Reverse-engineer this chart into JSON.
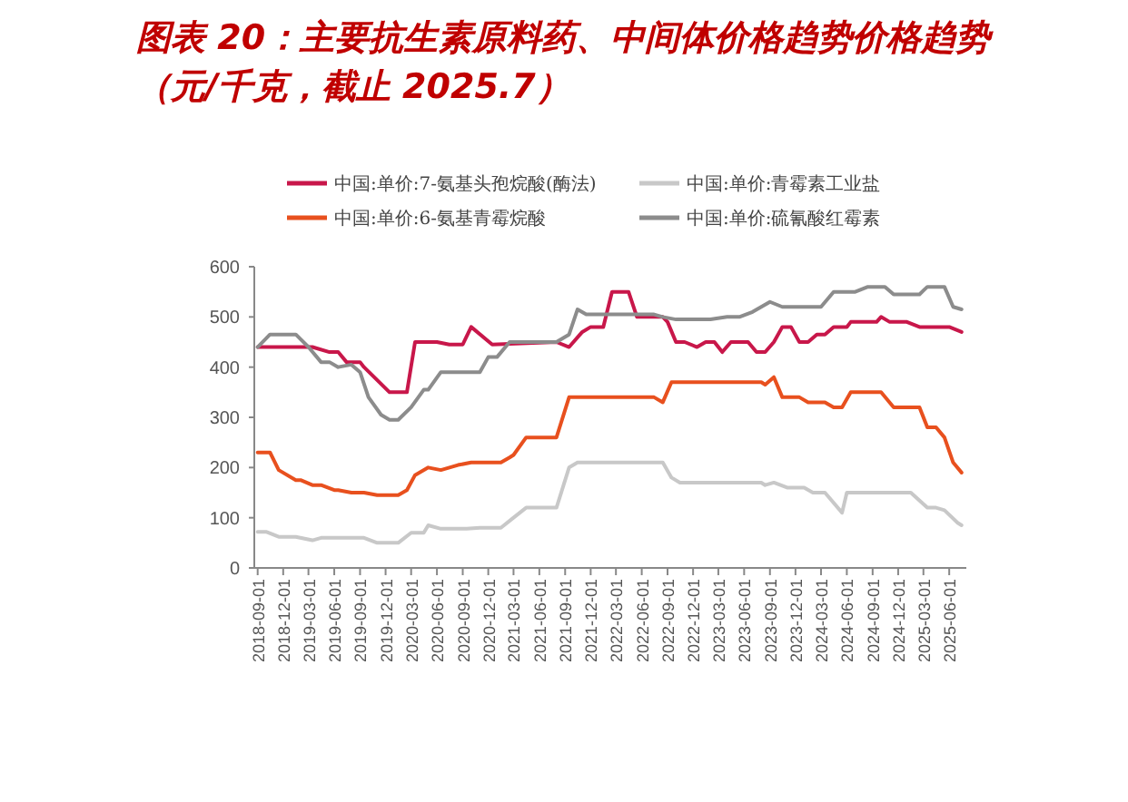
{
  "chart_data": {
    "type": "line",
    "title": "图表 20：主要抗生素原料药、中间体价格趋势价格趋势（元/千克，截止 2025.7）",
    "legend": "top",
    "grid": false,
    "xlim": [
      "2018-08-20",
      "2025-08-01"
    ],
    "ylim": [
      0,
      600
    ],
    "yticks": [
      0,
      100,
      200,
      300,
      400,
      500,
      600
    ],
    "xticks": [
      "2018-09-01",
      "2018-12-01",
      "2019-03-01",
      "2019-06-01",
      "2019-09-01",
      "2019-12-01",
      "2020-03-01",
      "2020-06-01",
      "2020-09-01",
      "2020-12-01",
      "2021-03-01",
      "2021-06-01",
      "2021-09-01",
      "2021-12-01",
      "2022-03-01",
      "2022-06-01",
      "2022-09-01",
      "2022-12-01",
      "2023-03-01",
      "2023-06-01",
      "2023-09-01",
      "2023-12-01",
      "2024-03-01",
      "2024-06-01",
      "2024-09-01",
      "2024-12-01",
      "2025-03-01",
      "2025-06-01"
    ],
    "series": [
      {
        "name": "中国:单价:7-氨基头孢烷酸(酶法)",
        "color": "#c8174a",
        "x": [
          "2018-09-01",
          "2019-03-15",
          "2019-05-15",
          "2019-06-15",
          "2019-07-15",
          "2019-09-01",
          "2019-09-15",
          "2019-12-15",
          "2020-02-15",
          "2020-03-15",
          "2020-06-01",
          "2020-07-15",
          "2020-09-01",
          "2020-10-01",
          "2020-12-15",
          "2021-08-01",
          "2021-09-15",
          "2021-11-01",
          "2021-12-01",
          "2022-01-15",
          "2022-02-15",
          "2022-04-15",
          "2022-05-15",
          "2022-08-15",
          "2022-09-01",
          "2022-10-01",
          "2022-11-01",
          "2022-12-15",
          "2023-01-15",
          "2023-02-15",
          "2023-03-15",
          "2023-04-15",
          "2023-06-15",
          "2023-07-15",
          "2023-08-15",
          "2023-09-15",
          "2023-10-15",
          "2023-11-15",
          "2023-12-15",
          "2024-01-15",
          "2024-02-15",
          "2024-03-15",
          "2024-04-15",
          "2024-06-01",
          "2024-06-15",
          "2024-09-15",
          "2024-10-01",
          "2024-11-01",
          "2025-01-01",
          "2025-02-15",
          "2025-06-01",
          "2025-07-15"
        ],
        "values": [
          440,
          440,
          430,
          430,
          410,
          410,
          400,
          350,
          350,
          450,
          450,
          445,
          445,
          480,
          445,
          450,
          440,
          470,
          480,
          480,
          550,
          550,
          500,
          500,
          490,
          450,
          450,
          440,
          450,
          450,
          430,
          450,
          450,
          430,
          430,
          450,
          480,
          480,
          450,
          450,
          465,
          465,
          480,
          480,
          490,
          490,
          500,
          490,
          490,
          480,
          480,
          470
        ]
      },
      {
        "name": "中国:单价:青霉素工业盐",
        "color": "#c8c8c8",
        "x": [
          "2018-09-01",
          "2018-10-01",
          "2018-11-15",
          "2019-01-15",
          "2019-03-15",
          "2019-04-15",
          "2019-09-15",
          "2019-11-01",
          "2020-01-15",
          "2020-03-01",
          "2020-04-15",
          "2020-05-01",
          "2020-06-15",
          "2020-09-15",
          "2020-11-01",
          "2021-01-15",
          "2021-03-01",
          "2021-04-15",
          "2021-08-01",
          "2021-09-15",
          "2021-10-15",
          "2022-08-15",
          "2022-09-15",
          "2022-10-15",
          "2023-08-01",
          "2023-08-15",
          "2023-09-15",
          "2023-11-01",
          "2024-01-01",
          "2024-02-01",
          "2024-03-15",
          "2024-05-15",
          "2024-06-01",
          "2025-01-15",
          "2025-03-15",
          "2025-04-15",
          "2025-05-15",
          "2025-07-01",
          "2025-07-15"
        ],
        "values": [
          72,
          72,
          62,
          62,
          55,
          60,
          60,
          50,
          50,
          70,
          70,
          85,
          78,
          78,
          80,
          80,
          100,
          120,
          120,
          200,
          210,
          210,
          180,
          170,
          170,
          165,
          170,
          160,
          160,
          150,
          150,
          110,
          150,
          150,
          120,
          120,
          115,
          90,
          85
        ]
      },
      {
        "name": "中国:单价:6-氨基青霉烷酸",
        "color": "#e8501e",
        "x": [
          "2018-09-01",
          "2018-10-15",
          "2018-11-15",
          "2019-01-15",
          "2019-02-01",
          "2019-03-15",
          "2019-04-15",
          "2019-06-01",
          "2019-06-15",
          "2019-08-01",
          "2019-09-15",
          "2019-11-01",
          "2020-01-15",
          "2020-02-15",
          "2020-03-15",
          "2020-05-01",
          "2020-06-15",
          "2020-08-15",
          "2020-10-01",
          "2021-01-15",
          "2021-02-15",
          "2021-03-01",
          "2021-04-15",
          "2021-08-01",
          "2021-09-15",
          "2022-07-15",
          "2022-08-15",
          "2022-09-15",
          "2023-08-01",
          "2023-08-15",
          "2023-09-15",
          "2023-10-15",
          "2023-12-15",
          "2024-01-15",
          "2024-03-15",
          "2024-04-15",
          "2024-05-15",
          "2024-06-15",
          "2024-10-01",
          "2024-11-15",
          "2025-02-15",
          "2025-03-15",
          "2025-04-15",
          "2025-05-15",
          "2025-06-15",
          "2025-07-15"
        ],
        "values": [
          230,
          230,
          195,
          175,
          175,
          165,
          165,
          155,
          155,
          150,
          150,
          145,
          145,
          155,
          185,
          200,
          195,
          205,
          210,
          210,
          220,
          225,
          260,
          260,
          340,
          340,
          330,
          370,
          370,
          365,
          380,
          340,
          340,
          330,
          330,
          320,
          320,
          350,
          350,
          320,
          320,
          280,
          280,
          260,
          210,
          190
        ]
      },
      {
        "name": "中国:单价:硫氰酸红霉素",
        "color": "#8c8c8c",
        "x": [
          "2018-09-01",
          "2018-10-15",
          "2019-01-15",
          "2019-03-01",
          "2019-04-15",
          "2019-05-15",
          "2019-06-15",
          "2019-08-01",
          "2019-09-01",
          "2019-10-01",
          "2019-11-15",
          "2019-12-15",
          "2020-01-15",
          "2020-03-01",
          "2020-04-15",
          "2020-05-01",
          "2020-06-15",
          "2020-11-01",
          "2020-12-01",
          "2021-01-01",
          "2021-02-15",
          "2021-08-01",
          "2021-09-15",
          "2021-10-15",
          "2021-11-15",
          "2022-07-15",
          "2022-08-15",
          "2022-10-01",
          "2023-02-01",
          "2023-04-01",
          "2023-05-15",
          "2023-07-01",
          "2023-09-01",
          "2023-10-15",
          "2024-03-01",
          "2024-04-15",
          "2024-07-01",
          "2024-08-15",
          "2024-10-15",
          "2024-11-15",
          "2025-02-15",
          "2025-03-15",
          "2025-05-15",
          "2025-06-15",
          "2025-07-15"
        ],
        "values": [
          440,
          465,
          465,
          440,
          410,
          410,
          400,
          405,
          390,
          340,
          305,
          295,
          295,
          320,
          355,
          355,
          390,
          390,
          420,
          420,
          450,
          450,
          465,
          515,
          505,
          505,
          500,
          495,
          495,
          500,
          500,
          510,
          530,
          520,
          520,
          550,
          550,
          560,
          560,
          545,
          545,
          560,
          560,
          520,
          515
        ]
      }
    ]
  }
}
